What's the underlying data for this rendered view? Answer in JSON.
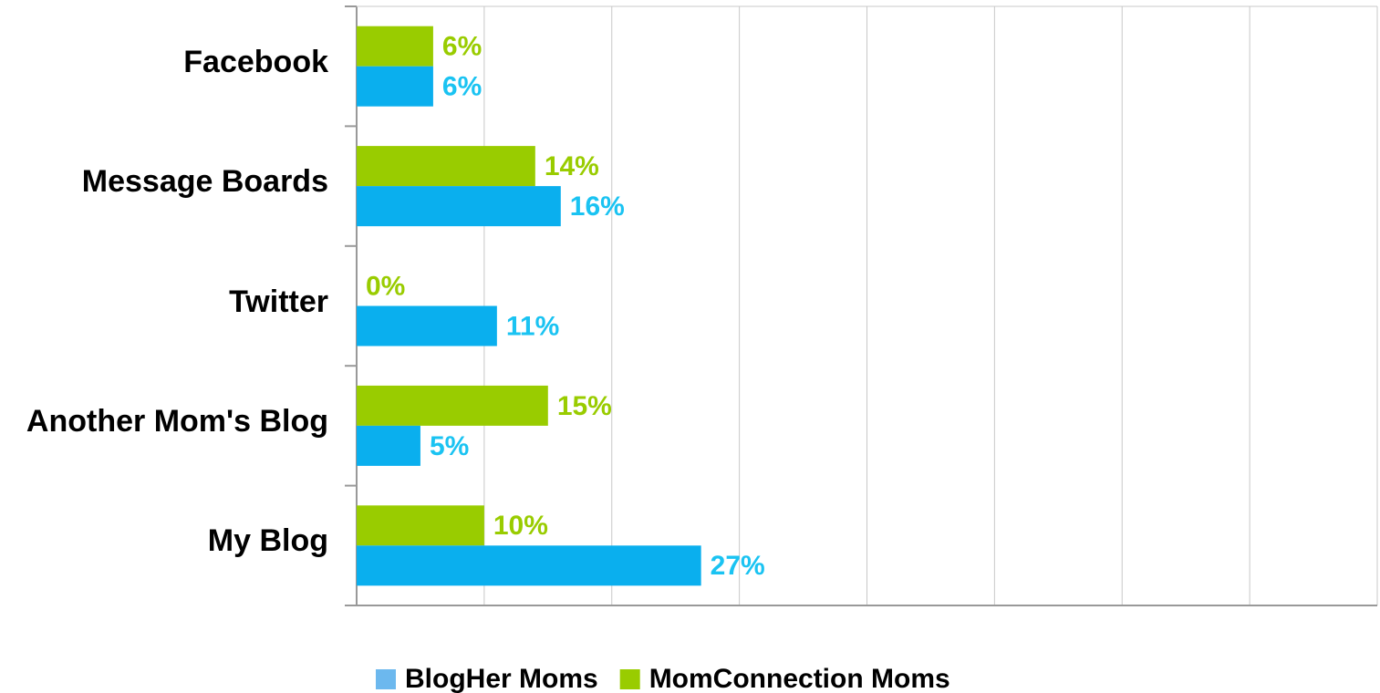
{
  "chart_data": {
    "type": "bar",
    "orientation": "horizontal",
    "categories": [
      "Facebook",
      "Message Boards",
      "Twitter",
      "Another Mom's Blog",
      "My Blog"
    ],
    "series": [
      {
        "name": "BlogHer Moms",
        "color": "#0aafee",
        "label_color": "#1ac3f2",
        "values": [
          6,
          16,
          11,
          5,
          27
        ],
        "value_labels": [
          "6%",
          "16%",
          "11%",
          "5%",
          "27%"
        ]
      },
      {
        "name": "MomConnection Moms",
        "color": "#99cc00",
        "label_color": "#99cc00",
        "values": [
          6,
          14,
          0,
          15,
          10
        ],
        "value_labels": [
          "6%",
          "14%",
          "0%",
          "15%",
          "10%"
        ]
      }
    ],
    "xlim": [
      0,
      80
    ],
    "xticks": [
      0,
      10,
      20,
      30,
      40,
      50,
      60,
      70,
      80
    ],
    "grid": true,
    "legend": "bottom"
  }
}
